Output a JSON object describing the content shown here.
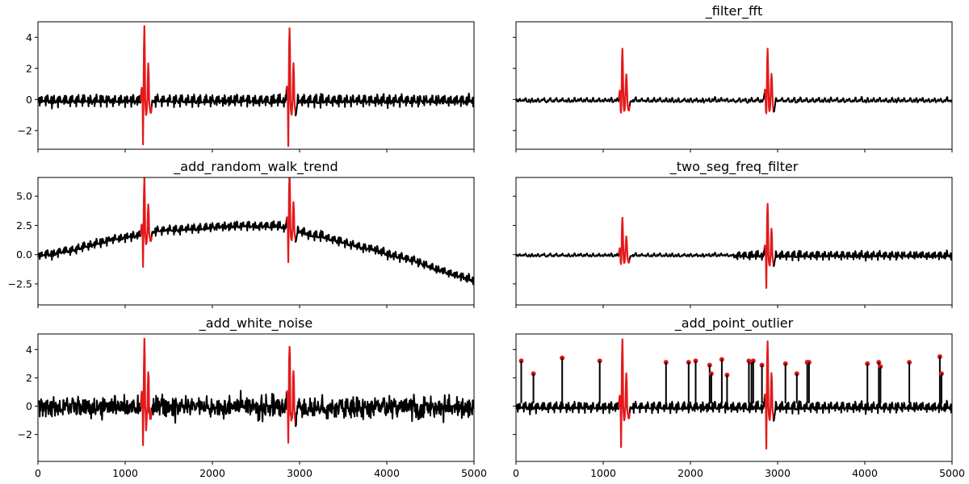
{
  "colors": {
    "normal": "#000000",
    "anomaly": "#e31a1c"
  },
  "chart_data": [
    {
      "type": "line",
      "title": "",
      "xlim": [
        0,
        5000
      ],
      "ylim": [
        -3.2,
        5.0
      ],
      "yticks": [
        "4",
        "2",
        "0",
        "−2"
      ],
      "ytick_values": [
        4,
        2,
        0,
        -2
      ],
      "xticks": [],
      "xtick_values": [
        0,
        1000,
        2000,
        3000,
        4000,
        5000
      ],
      "show_yticklabels": true,
      "show_xticklabels": false,
      "augmentation": "none",
      "anomaly_segments": [
        [
          1180,
          1300
        ],
        [
          2850,
          2950
        ]
      ]
    },
    {
      "type": "line",
      "title": "_filter_fft",
      "xlim": [
        0,
        5000
      ],
      "ylim": [
        -3.2,
        5.0
      ],
      "yticks": [],
      "ytick_values": [
        4,
        2,
        0,
        -2
      ],
      "xticks": [],
      "xtick_values": [
        0,
        1000,
        2000,
        3000,
        4000,
        5000
      ],
      "show_yticklabels": false,
      "show_xticklabels": false,
      "augmentation": "filter_fft",
      "anomaly_segments": [
        [
          1180,
          1300
        ],
        [
          2850,
          2950
        ]
      ]
    },
    {
      "type": "line",
      "title": "_add_random_walk_trend",
      "xlim": [
        0,
        5000
      ],
      "ylim": [
        -4.3,
        6.6
      ],
      "yticks": [
        "5.0",
        "2.5",
        "0.0",
        "−2.5"
      ],
      "ytick_values": [
        5.0,
        2.5,
        0.0,
        -2.5
      ],
      "xticks": [],
      "xtick_values": [
        0,
        1000,
        2000,
        3000,
        4000,
        5000
      ],
      "show_yticklabels": true,
      "show_xticklabels": false,
      "augmentation": "random_walk_trend",
      "anomaly_segments": [
        [
          1180,
          1300
        ],
        [
          2850,
          2950
        ]
      ]
    },
    {
      "type": "line",
      "title": "_two_seg_freq_filter",
      "xlim": [
        0,
        5000
      ],
      "ylim": [
        -4.3,
        6.6
      ],
      "yticks": [],
      "ytick_values": [
        5.0,
        2.5,
        0.0,
        -2.5
      ],
      "xticks": [],
      "xtick_values": [
        0,
        1000,
        2000,
        3000,
        4000,
        5000
      ],
      "show_yticklabels": false,
      "show_xticklabels": false,
      "augmentation": "two_seg_freq_filter",
      "anomaly_segments": [
        [
          1180,
          1300
        ],
        [
          2850,
          2950
        ]
      ]
    },
    {
      "type": "line",
      "title": "_add_white_noise",
      "xlim": [
        0,
        5000
      ],
      "ylim": [
        -3.9,
        5.1
      ],
      "yticks": [
        "4",
        "2",
        "0",
        "−2"
      ],
      "ytick_values": [
        4,
        2,
        0,
        -2
      ],
      "xticks": [
        "0",
        "1000",
        "2000",
        "3000",
        "4000",
        "5000"
      ],
      "xtick_values": [
        0,
        1000,
        2000,
        3000,
        4000,
        5000
      ],
      "show_yticklabels": true,
      "show_xticklabels": true,
      "augmentation": "white_noise",
      "anomaly_segments": [
        [
          1180,
          1300
        ],
        [
          2850,
          2950
        ]
      ]
    },
    {
      "type": "line",
      "title": "_add_point_outlier",
      "xlim": [
        0,
        5000
      ],
      "ylim": [
        -3.9,
        5.1
      ],
      "yticks": [],
      "ytick_values": [
        4,
        2,
        0,
        -2
      ],
      "xticks": [
        "0",
        "1000",
        "2000",
        "3000",
        "4000",
        "5000"
      ],
      "xtick_values": [
        0,
        1000,
        2000,
        3000,
        4000,
        5000
      ],
      "show_yticklabels": false,
      "show_xticklabels": true,
      "augmentation": "point_outlier",
      "anomaly_segments": [
        [
          1180,
          1300
        ],
        [
          2850,
          2950
        ]
      ],
      "outlier_points": [
        {
          "x": 60,
          "y": 3.2
        },
        {
          "x": 200,
          "y": 2.3
        },
        {
          "x": 530,
          "y": 3.4
        },
        {
          "x": 960,
          "y": 3.2
        },
        {
          "x": 1720,
          "y": 3.1
        },
        {
          "x": 1980,
          "y": 3.1
        },
        {
          "x": 2060,
          "y": 3.2
        },
        {
          "x": 2220,
          "y": 2.9
        },
        {
          "x": 2240,
          "y": 2.3
        },
        {
          "x": 2360,
          "y": 3.3
        },
        {
          "x": 2420,
          "y": 2.2
        },
        {
          "x": 2670,
          "y": 3.2
        },
        {
          "x": 2700,
          "y": 3.1
        },
        {
          "x": 2720,
          "y": 3.2
        },
        {
          "x": 2820,
          "y": 2.9
        },
        {
          "x": 3090,
          "y": 3.0
        },
        {
          "x": 3220,
          "y": 2.3
        },
        {
          "x": 3340,
          "y": 3.1
        },
        {
          "x": 3360,
          "y": 3.1
        },
        {
          "x": 4030,
          "y": 3.0
        },
        {
          "x": 4160,
          "y": 3.1
        },
        {
          "x": 4180,
          "y": 2.8
        },
        {
          "x": 4510,
          "y": 3.1
        },
        {
          "x": 4860,
          "y": 3.5
        },
        {
          "x": 4880,
          "y": 2.3
        }
      ]
    }
  ]
}
